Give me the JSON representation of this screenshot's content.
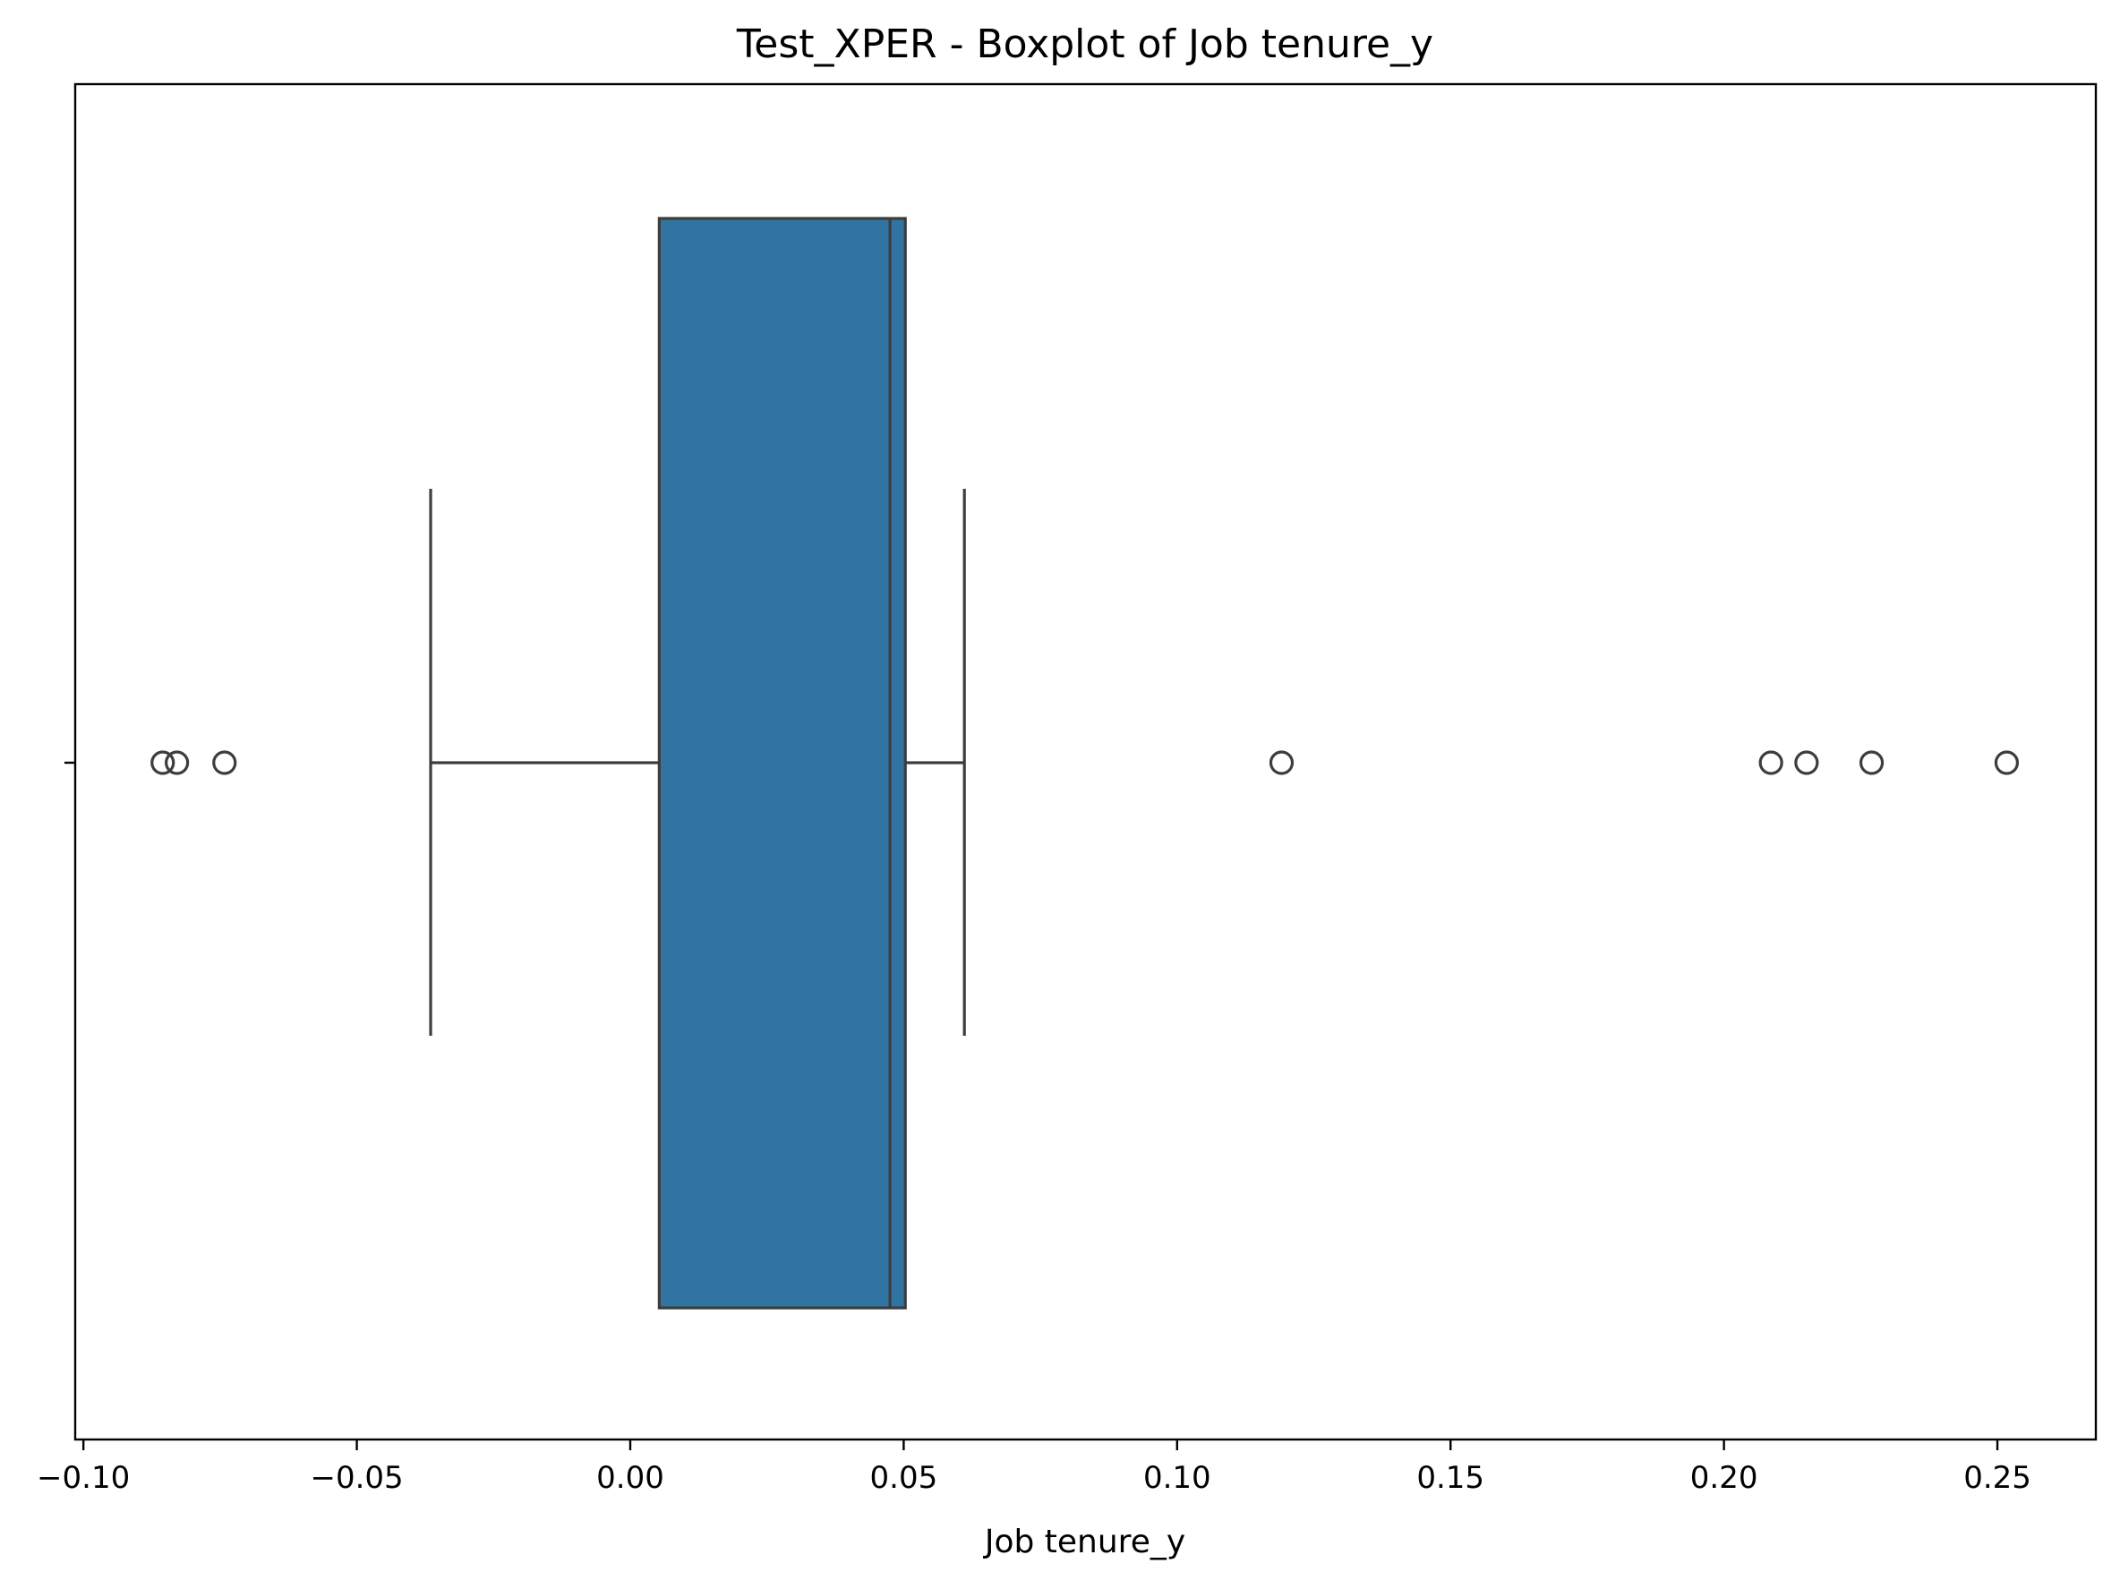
{
  "chart_data": {
    "type": "boxplot",
    "title": "Test_XPER - Boxplot of Job tenure_y",
    "xlabel": "Job tenure_y",
    "ylabel": "",
    "orientation": "horizontal",
    "xlim": [
      -0.1015,
      0.268
    ],
    "xticks": [
      -0.1,
      -0.05,
      0.0,
      0.05,
      0.1,
      0.15,
      0.2,
      0.25
    ],
    "xtick_labels": [
      "−0.10",
      "−0.05",
      "0.00",
      "0.05",
      "0.10",
      "0.15",
      "0.20",
      "0.25"
    ],
    "grid": false,
    "box": {
      "whisker_low": -0.0365,
      "q1": 0.0053,
      "median": 0.0475,
      "q3": 0.0503,
      "whisker_high": 0.0611,
      "fill_color": "#3274a1",
      "line_color": "#3d3d3d"
    },
    "outliers": [
      -0.0855,
      -0.0829,
      -0.0742,
      0.1191,
      0.2086,
      0.2151,
      0.227,
      0.2517
    ]
  }
}
